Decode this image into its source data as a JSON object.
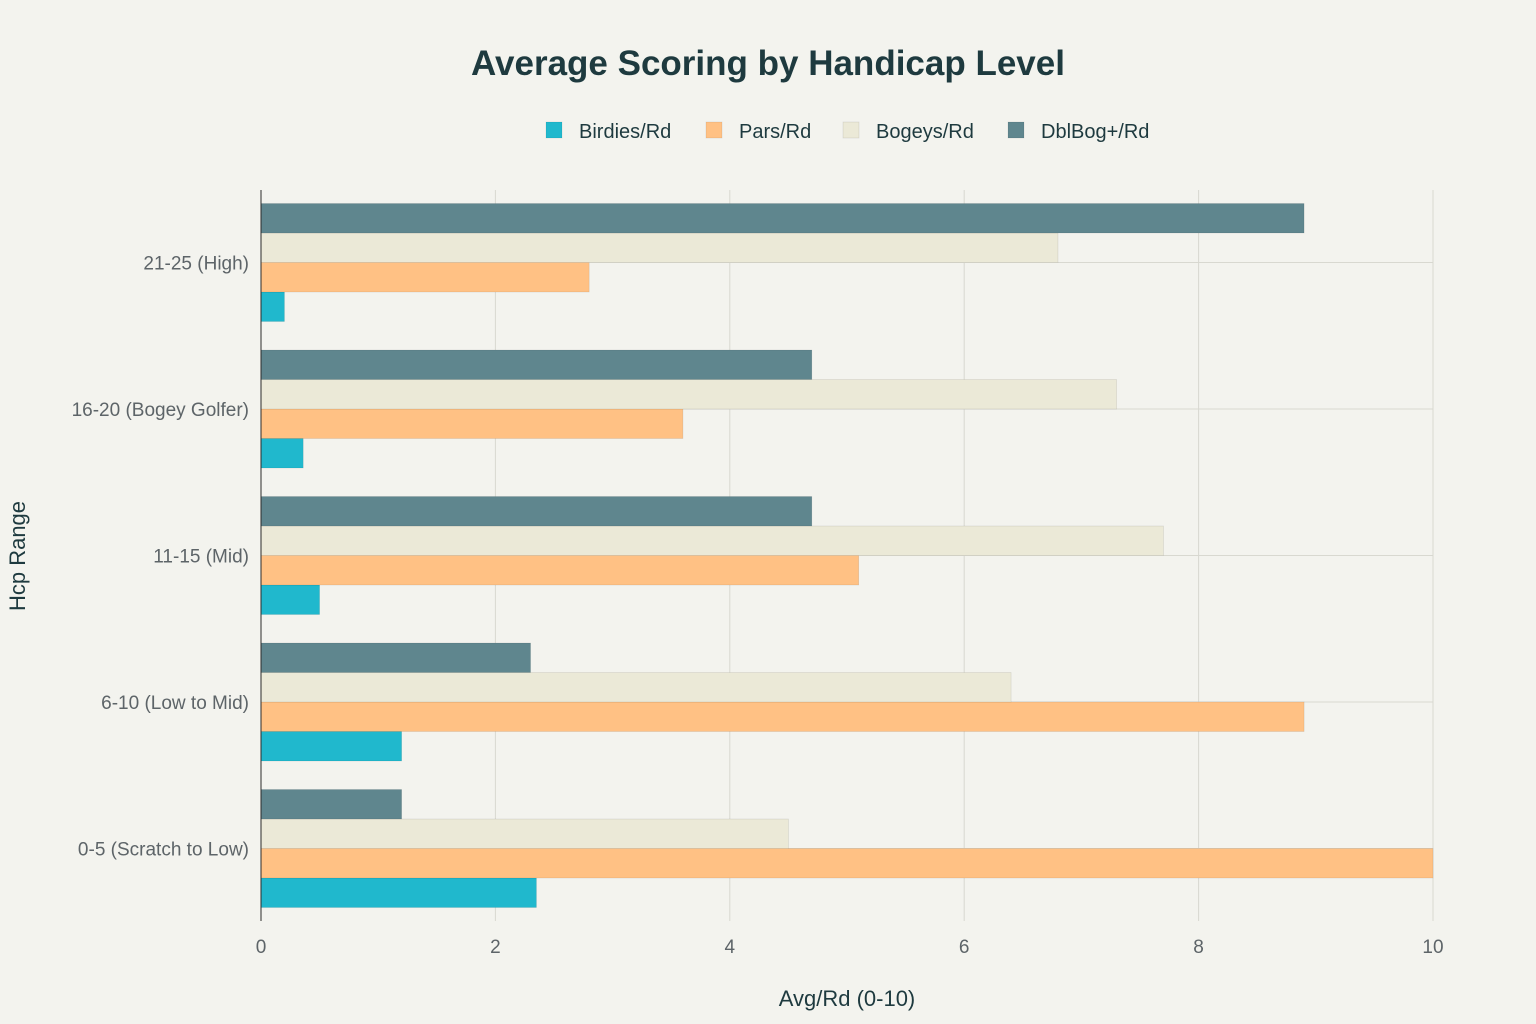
{
  "chart_data": {
    "type": "bar",
    "orientation": "horizontal",
    "title": "Average Scoring by Handicap Level",
    "xlabel": "Avg/Rd (0-10)",
    "ylabel": "Hcp Range",
    "xlim": [
      0,
      10
    ],
    "xticks": [
      "0",
      "2",
      "4",
      "6",
      "8",
      "10"
    ],
    "xtick_values": [
      0,
      2,
      4,
      6,
      8,
      10
    ],
    "grid": true,
    "legend_position": "top-center",
    "categories": [
      "0-5 (Scratch to Low)",
      "6-10 (Low to Mid)",
      "11-15 (Mid)",
      "16-20 (Bogey Golfer)",
      "21-25 (High)"
    ],
    "series": [
      {
        "name": "Birdies/Rd",
        "color": "#20b8cd",
        "values": [
          2.35,
          1.2,
          0.5,
          0.36,
          0.2
        ]
      },
      {
        "name": "Pars/Rd",
        "color": "#ffc184",
        "values": [
          10.0,
          8.9,
          5.1,
          3.6,
          2.8
        ]
      },
      {
        "name": "Bogeys/Rd",
        "color": "#ebe9d7",
        "values": [
          4.5,
          6.4,
          7.7,
          7.3,
          6.8
        ]
      },
      {
        "name": "DblBog+/Rd",
        "color": "#5f868e",
        "values": [
          1.2,
          2.3,
          4.7,
          4.7,
          8.9
        ]
      }
    ]
  }
}
